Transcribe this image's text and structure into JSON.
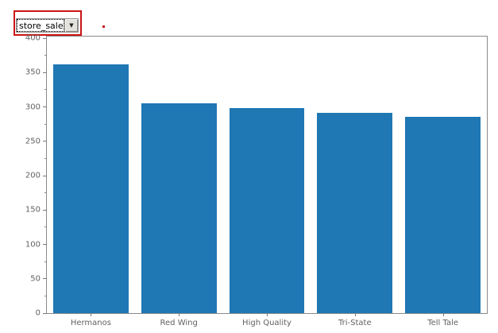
{
  "dropdown": {
    "value": "store_sales",
    "arrow_icon": "▼"
  },
  "annotation": {
    "highlight_color": "#cc1414",
    "dot_color": "#c02020"
  },
  "chart_data": {
    "type": "bar",
    "categories": [
      "Hermanos",
      "Red Wing",
      "High Quality",
      "Tri-State",
      "Tell Tale"
    ],
    "values": [
      362,
      305,
      298,
      291,
      285
    ],
    "title": "",
    "xlabel": "",
    "ylabel": "",
    "ylim": [
      0,
      400
    ],
    "yticks": [
      0,
      50,
      100,
      150,
      200,
      250,
      300,
      350,
      400
    ],
    "minor_tick_interval": 25,
    "bar_color": "#1f77b4",
    "axis_color": "#8a8a8a",
    "tick_label_color": "#616161",
    "grid": false,
    "legend": null
  }
}
